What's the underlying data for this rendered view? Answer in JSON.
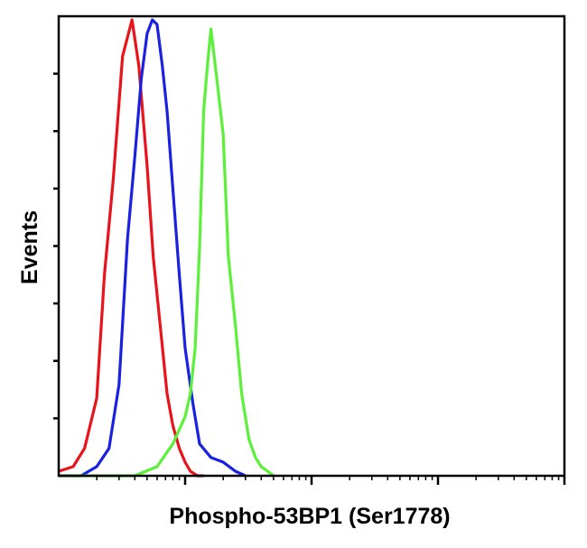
{
  "chart_data": {
    "type": "line",
    "title": "",
    "xlabel": "Phospho-53BP1 (Ser1778)",
    "ylabel": "Events",
    "xscale": "log",
    "xlim": [
      1,
      10000
    ],
    "ylim": [
      0,
      100
    ],
    "grid": false,
    "legend": "none",
    "series": [
      {
        "color": "#e8141b",
        "x": [
          1.0,
          1.3,
          1.6,
          2.0,
          2.3,
          2.7,
          3.2,
          3.8,
          4.3,
          5.0,
          5.6,
          6.4,
          7.2,
          8.0,
          9.0,
          10.0,
          11.0,
          12.5,
          14.0
        ],
        "y": [
          1,
          2,
          6,
          17,
          44,
          65,
          92,
          100,
          90,
          68,
          48,
          32,
          18,
          11,
          6,
          3,
          1,
          0,
          0
        ]
      },
      {
        "color": "#1a22e0",
        "x": [
          1.0,
          1.5,
          2.0,
          2.5,
          3.0,
          3.5,
          4.0,
          4.5,
          5.0,
          5.5,
          6.0,
          6.6,
          7.2,
          8.0,
          9.0,
          10.0,
          11.5,
          13.0,
          16.0,
          20.0,
          25.0,
          30.0
        ],
        "y": [
          0,
          0,
          2,
          6,
          20,
          52,
          70,
          87,
          97,
          100,
          99,
          90,
          80,
          63,
          44,
          28,
          16,
          7,
          4,
          3,
          1,
          0
        ]
      },
      {
        "color": "#5cf03a",
        "x": [
          1.0,
          4.0,
          6.0,
          8.0,
          10.0,
          11.0,
          12.0,
          13.0,
          14.0,
          15.0,
          16.0,
          18.0,
          20.0,
          22.0,
          25.0,
          28.0,
          32.0,
          36.0,
          40.0,
          45.0,
          50.0
        ],
        "y": [
          0,
          0,
          2,
          7,
          13,
          18,
          28,
          50,
          80,
          90,
          98,
          86,
          75,
          48,
          33,
          18,
          8,
          4,
          2,
          1,
          0
        ]
      }
    ]
  }
}
